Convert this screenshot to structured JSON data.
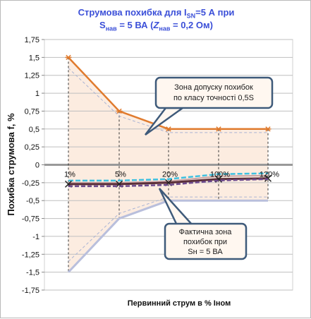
{
  "title": {
    "line1": {
      "a": "Струмова  похибка для I",
      "sub": "SN",
      "b": "=5 А при"
    },
    "line2": {
      "a": "S",
      "sub1": "нав",
      "b": " = 5 ВА (",
      "c": "Z",
      "sub2": "нав",
      "d": " = 0,2 Ом)"
    }
  },
  "colors": {
    "upper_limit": "#e07b2e",
    "lower_limit": "#b9bfdc",
    "fill_zone": "#fcece0",
    "band_blue": "#3ec0e0",
    "band_dark": "#5a2f3a",
    "band_purple": "#6d4a8e",
    "callout_border": "#3e5a7a",
    "callout_fill": "#fff7f0",
    "grid": "#bfbfbf",
    "zero_line": "#999999"
  },
  "chart_data": {
    "type": "line",
    "categories": [
      "1%",
      "5%",
      "20%",
      "100%",
      "120%"
    ],
    "xlabel": "Первинний  струм в % Іном",
    "ylabel": "Похибка струмова  f, %",
    "ylim": [
      -1.75,
      1.75
    ],
    "ytick_step": 0.25,
    "yticks": [
      "1,75",
      "1,5",
      "1,25",
      "1",
      "0,75",
      "0,5",
      "0,25",
      "0",
      "-0,25",
      "-0,5",
      "-0,75",
      "-1",
      "-1,25",
      "-1,5",
      "-1,75"
    ],
    "grid": true,
    "series": [
      {
        "values": [
          1.5,
          0.75,
          0.5,
          0.5,
          0.5
        ],
        "style": "upper"
      },
      {
        "values": [
          1.35,
          0.68,
          0.45,
          0.45,
          0.45
        ],
        "style": "upper_dashed"
      },
      {
        "values": [
          -1.5,
          -0.75,
          -0.5,
          -0.5,
          -0.5
        ],
        "style": "lower"
      },
      {
        "values": [
          -1.35,
          -0.68,
          -0.45,
          -0.45,
          -0.45
        ],
        "style": "lower_dashed"
      },
      {
        "values": [
          -0.22,
          -0.22,
          -0.2,
          -0.13,
          -0.12
        ],
        "style": "band_blue"
      },
      {
        "values": [
          -0.25,
          -0.25,
          -0.23,
          -0.16,
          -0.15
        ],
        "style": "band_light"
      },
      {
        "values": [
          -0.27,
          -0.27,
          -0.25,
          -0.2,
          -0.19
        ],
        "style": "band_dark"
      },
      {
        "values": [
          -0.3,
          -0.3,
          -0.28,
          -0.22,
          -0.2
        ],
        "style": "band_purple"
      }
    ]
  },
  "callouts": [
    {
      "lines": [
        "Зона допуску похибок",
        "по класу  точності  0,5S"
      ]
    },
    {
      "lines": [
        "Фактична зона",
        "похибок при",
        "Sн = 5 ВА"
      ]
    }
  ]
}
